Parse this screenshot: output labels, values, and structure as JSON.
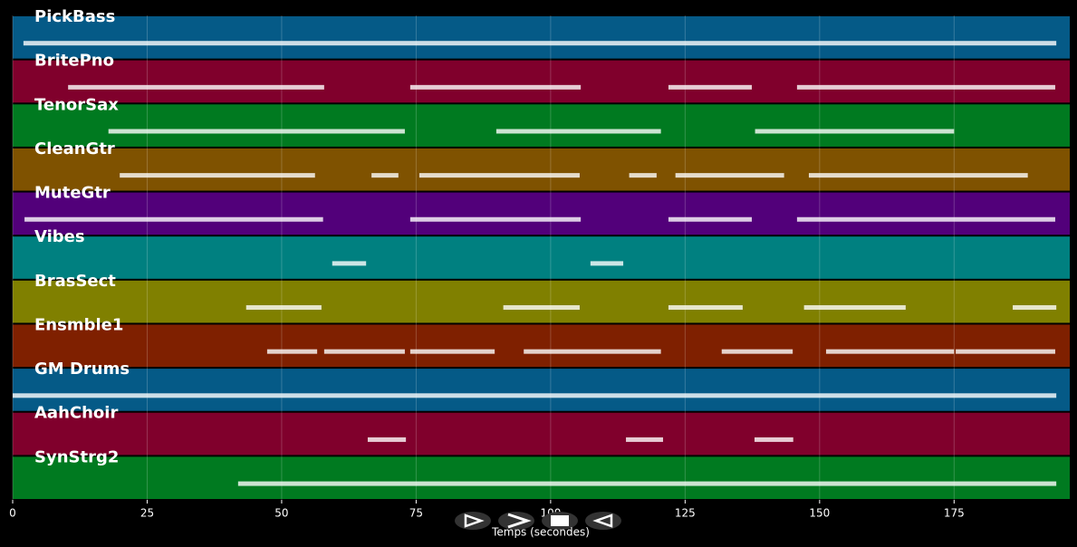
{
  "chart_data": {
    "type": "pianoroll",
    "xlabel": "Temps (secondes)",
    "xlim": [
      0,
      196.5
    ],
    "xticks": [
      0,
      25,
      50,
      75,
      100,
      125,
      150,
      175
    ],
    "grid": true,
    "tracks": [
      {
        "name": "PickBass",
        "color": "#055a87",
        "segments": [
          [
            2,
            194
          ]
        ]
      },
      {
        "name": "BritePno",
        "color": "#80002c",
        "segments": [
          [
            10.3,
            57.9
          ],
          [
            73.9,
            105.6
          ],
          [
            121.9,
            137.4
          ],
          [
            145.8,
            193.8
          ]
        ]
      },
      {
        "name": "TenorSax",
        "color": "#007a20",
        "segments": [
          [
            17.8,
            72.9
          ],
          [
            89.9,
            120.5
          ],
          [
            138,
            175
          ]
        ]
      },
      {
        "name": "CleanGtr",
        "color": "#7f5200",
        "segments": [
          [
            19.9,
            56.2
          ],
          [
            66.7,
            71.7
          ],
          [
            75.6,
            105.4
          ],
          [
            114.6,
            119.7
          ],
          [
            123.2,
            143.4
          ],
          [
            148,
            188.7
          ]
        ]
      },
      {
        "name": "MuteGtr",
        "color": "#52007a",
        "segments": [
          [
            2.2,
            57.7
          ],
          [
            73.9,
            105.6
          ],
          [
            121.9,
            137.4
          ],
          [
            145.8,
            193.8
          ]
        ]
      },
      {
        "name": "Vibes",
        "color": "#008080",
        "segments": [
          [
            59.4,
            65.7
          ],
          [
            107.4,
            113.5
          ]
        ]
      },
      {
        "name": "BrasSect",
        "color": "#808000",
        "segments": [
          [
            43.4,
            57.4
          ],
          [
            91.2,
            105.4
          ],
          [
            121.9,
            135.7
          ],
          [
            147.1,
            166
          ],
          [
            185.9,
            194
          ]
        ]
      },
      {
        "name": "Ensmble1",
        "color": "#7f2000",
        "segments": [
          [
            47.3,
            56.6
          ],
          [
            57.9,
            72.9
          ],
          [
            73.9,
            89.6
          ],
          [
            95,
            120.5
          ],
          [
            131.8,
            145
          ],
          [
            151.2,
            175
          ],
          [
            175.3,
            193.8
          ]
        ]
      },
      {
        "name": "GM Drums",
        "color": "#055a87",
        "segments": [
          [
            0,
            194
          ]
        ]
      },
      {
        "name": "AahChoir",
        "color": "#80002c",
        "segments": [
          [
            66,
            73.1
          ],
          [
            114,
            120.9
          ],
          [
            137.9,
            145.1
          ]
        ]
      },
      {
        "name": "SynStrg2",
        "color": "#007a20",
        "segments": [
          [
            41.9,
            194
          ]
        ]
      }
    ]
  }
}
